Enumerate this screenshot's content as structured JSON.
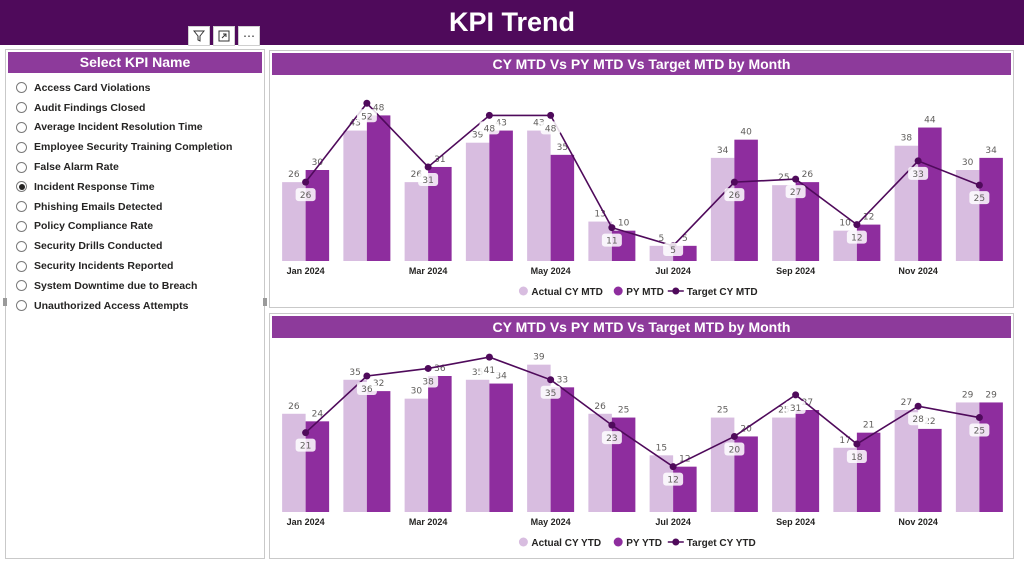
{
  "header": {
    "title": "KPI Trend"
  },
  "toolbar": {
    "icons": [
      "filter-icon",
      "focus-mode-icon",
      "more-options-icon"
    ],
    "more_glyph": "⋯"
  },
  "slicer": {
    "title": "Select KPI Name",
    "selected": "Incident Response Time",
    "items": [
      "Access Card Violations",
      "Audit Findings Closed",
      "Average Incident Resolution Time",
      "Employee Security Training Completion",
      "False Alarm Rate",
      "Incident Response Time",
      "Phishing Emails Detected",
      "Policy Compliance Rate",
      "Security Drills Conducted",
      "Security Incidents Reported",
      "System Downtime due to Breach",
      "Unauthorized Access Attempts"
    ]
  },
  "colors": {
    "header": "#4f0a5b",
    "title_bar": "#8d3a9b",
    "actual": "#d8bde0",
    "previous": "#8e2d9e",
    "target": "#4f0a5b"
  },
  "chart_data": [
    {
      "type": "bar",
      "title": "CY MTD Vs PY MTD Vs Target MTD by Month",
      "categories": [
        "Jan 2024",
        "Feb 2024",
        "Mar 2024",
        "Apr 2024",
        "May 2024",
        "Jun 2024",
        "Jul 2024",
        "Aug 2024",
        "Sep 2024",
        "Oct 2024",
        "Nov 2024",
        "Dec 2024"
      ],
      "tick_labels": [
        "Jan 2024",
        "",
        "Mar 2024",
        "",
        "May 2024",
        "",
        "Jul 2024",
        "",
        "Sep 2024",
        "",
        "Nov 2024",
        ""
      ],
      "ylim": [
        0,
        60
      ],
      "legend_position": "bottom-center",
      "series": [
        {
          "name": "Actual CY MTD",
          "kind": "bar",
          "values": [
            26,
            43,
            26,
            39,
            43,
            13,
            5,
            34,
            25,
            10,
            38,
            30
          ]
        },
        {
          "name": "PY MTD",
          "kind": "bar",
          "values": [
            30,
            48,
            31,
            43,
            35,
            10,
            5,
            40,
            26,
            12,
            44,
            34
          ]
        },
        {
          "name": "Target CY MTD",
          "kind": "line",
          "values": [
            26,
            52,
            31,
            48,
            48,
            11,
            5,
            26,
            27,
            12,
            33,
            25
          ]
        }
      ]
    },
    {
      "type": "bar",
      "title": "CY MTD Vs PY MTD Vs Target MTD by Month",
      "categories": [
        "Jan 2024",
        "Feb 2024",
        "Mar 2024",
        "Apr 2024",
        "May 2024",
        "Jun 2024",
        "Jul 2024",
        "Aug 2024",
        "Sep 2024",
        "Oct 2024",
        "Nov 2024",
        "Dec 2024"
      ],
      "tick_labels": [
        "Jan 2024",
        "",
        "Mar 2024",
        "",
        "May 2024",
        "",
        "Jul 2024",
        "",
        "Sep 2024",
        "",
        "Nov 2024",
        ""
      ],
      "ylim": [
        0,
        45
      ],
      "legend_position": "bottom-center",
      "series": [
        {
          "name": "Actual CY YTD",
          "kind": "bar",
          "values": [
            26,
            35,
            30,
            35,
            39,
            26,
            15,
            25,
            25,
            17,
            27,
            29
          ]
        },
        {
          "name": "PY YTD",
          "kind": "bar",
          "values": [
            24,
            32,
            36,
            34,
            33,
            25,
            12,
            20,
            27,
            21,
            22,
            29
          ]
        },
        {
          "name": "Target CY YTD",
          "kind": "line",
          "values": [
            21,
            36,
            38,
            41,
            35,
            23,
            12,
            20,
            31,
            18,
            28,
            25
          ]
        }
      ]
    }
  ]
}
